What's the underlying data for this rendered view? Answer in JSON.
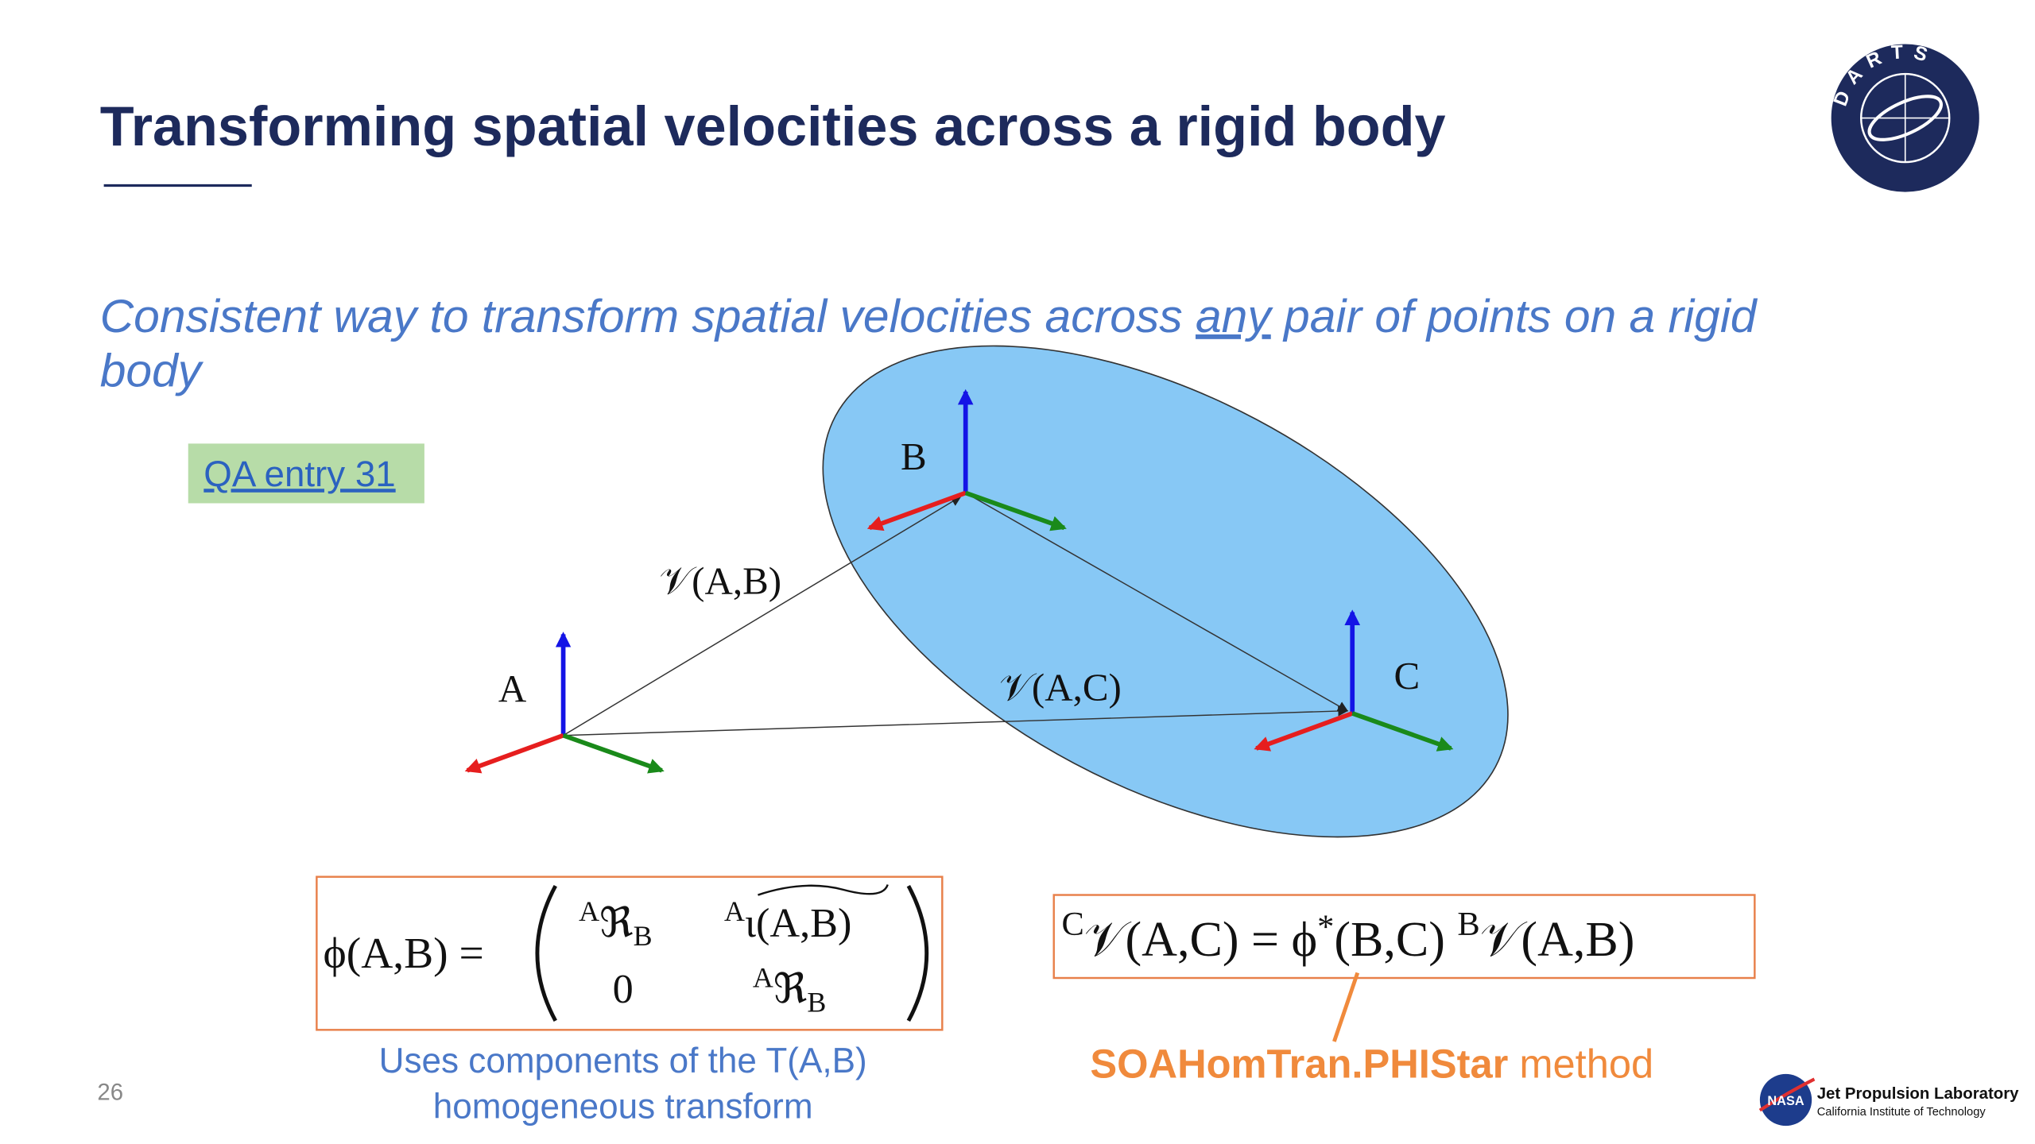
{
  "slide": {
    "title": "Transforming spatial velocities across a rigid body",
    "subtitle": {
      "before": "Consistent way to transform spatial velocities across ",
      "emphasis": "any",
      "after": " pair of points on a rigid",
      "continuation": "body"
    },
    "link": "QA entry 31",
    "logo": "DARTS",
    "page_number": "26",
    "footer": {
      "badge": "NASA",
      "lab": "Jet Propulsion Laboratory",
      "institute": "California Institute of Technology"
    }
  },
  "diagram": {
    "points": [
      "A",
      "B",
      "C"
    ],
    "edges": [
      "𝒱(A,B)",
      "𝒱(A,C)"
    ]
  },
  "formula_1": {
    "lhs": "ϕ(A,B) =",
    "matrix": [
      [
        {
          "sup": "A",
          "base": "ℜ",
          "sub": "B"
        },
        {
          "sup": "A",
          "base": "ι(A,B)"
        }
      ],
      [
        {
          "base": "0"
        },
        {
          "sup": "A",
          "base": "ℜ",
          "sub": "B"
        }
      ]
    ],
    "caption": [
      "Uses components of the T(A,B)",
      "homogeneous transform"
    ]
  },
  "formula_2": {
    "sup_1": "C",
    "lhs": "𝒱(A,C) = ϕ",
    "star": "*",
    "mid": "(B,C) ",
    "sup_2": "B",
    "rhs": "𝒱(A,B)",
    "caption": {
      "method": "SOAHomTran.PHIStar",
      "suffix": " method"
    }
  }
}
